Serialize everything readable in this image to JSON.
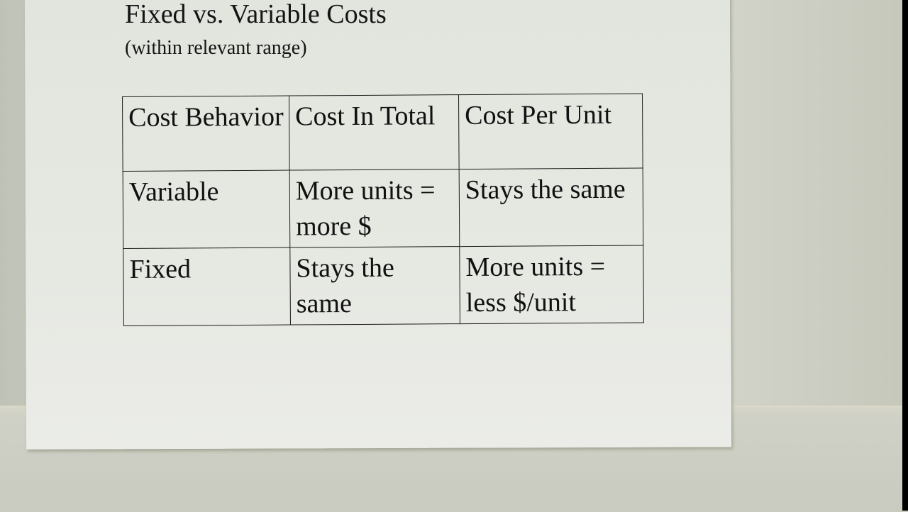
{
  "title": "Fixed vs. Variable Costs",
  "subtitle": "(within relevant range)",
  "table": {
    "headers": [
      "Cost Behavior",
      "Cost In Total",
      "Cost Per Unit"
    ],
    "rows": [
      [
        "Variable",
        "More units = more $",
        "Stays the same"
      ],
      [
        "Fixed",
        "Stays the same",
        "More units = less $/unit"
      ]
    ]
  }
}
